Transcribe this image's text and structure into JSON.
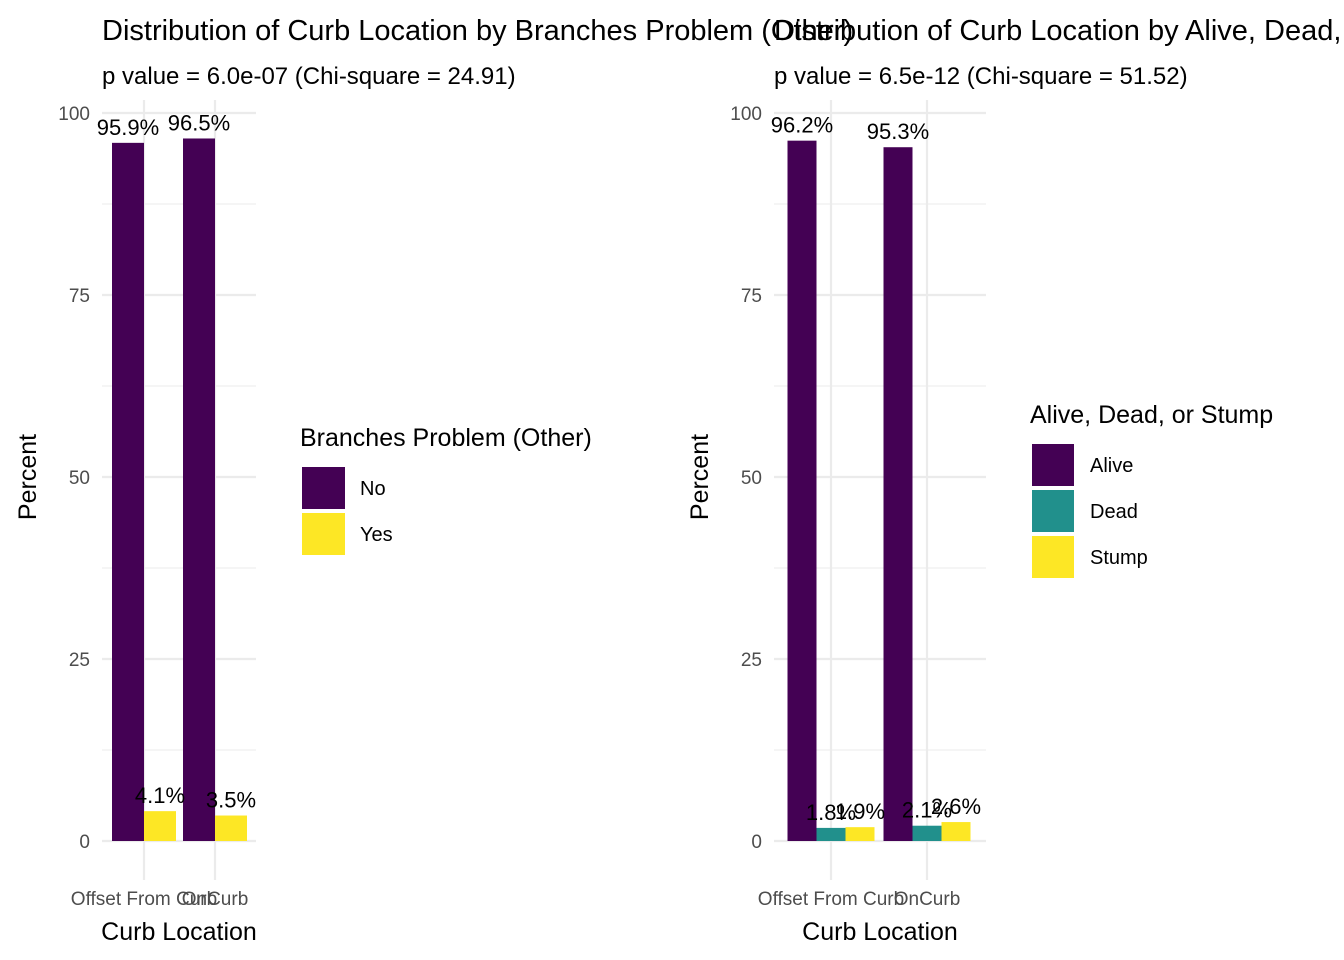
{
  "chart_data": [
    {
      "type": "bar",
      "title": "Distribution of Curb Location by Branches Problem (Other)",
      "subtitle": "p value = 6.0e-07 (Chi-square = 24.91)",
      "xlabel": "Curb Location",
      "ylabel": "Percent",
      "ylim": [
        0,
        100
      ],
      "yticks": [
        0,
        25,
        50,
        75,
        100
      ],
      "grid": true,
      "categories": [
        "Offset From Curb",
        "OnCurb"
      ],
      "legend": {
        "title": "Branches Problem (Other)",
        "placement": "right"
      },
      "series": [
        {
          "name": "No",
          "color": "#440154",
          "values": [
            95.9,
            96.5
          ],
          "labels": [
            "95.9%",
            "96.5%"
          ]
        },
        {
          "name": "Yes",
          "color": "#FDE725",
          "values": [
            4.1,
            3.5
          ],
          "labels": [
            "4.1%",
            "3.5%"
          ]
        }
      ]
    },
    {
      "type": "bar",
      "title": "Distribution of Curb Location by Alive, Dead, or Stump",
      "subtitle": "p value = 6.5e-12 (Chi-square = 51.52)",
      "xlabel": "Curb Location",
      "ylabel": "Percent",
      "ylim": [
        0,
        100
      ],
      "yticks": [
        0,
        25,
        50,
        75,
        100
      ],
      "grid": true,
      "categories": [
        "Offset From Curb",
        "OnCurb"
      ],
      "legend": {
        "title": "Alive, Dead, or Stump",
        "placement": "right"
      },
      "series": [
        {
          "name": "Alive",
          "color": "#440154",
          "values": [
            96.2,
            95.3
          ],
          "labels": [
            "96.2%",
            "95.3%"
          ]
        },
        {
          "name": "Dead",
          "color": "#21908C",
          "values": [
            1.8,
            2.1
          ],
          "labels": [
            "1.8%",
            "2.1%"
          ]
        },
        {
          "name": "Stump",
          "color": "#FDE725",
          "values": [
            1.9,
            2.6
          ],
          "labels": [
            "1.9%",
            "2.6%"
          ]
        }
      ]
    }
  ]
}
